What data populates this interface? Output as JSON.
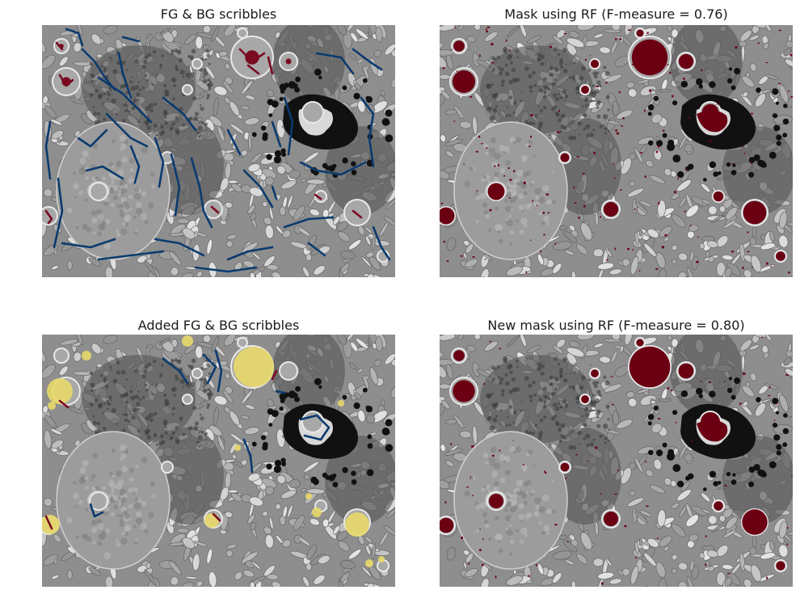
{
  "figure": {
    "panels": [
      {
        "id": "p1",
        "title": "FG & BG scribbles",
        "overlay": "scribbles"
      },
      {
        "id": "p2",
        "title": "Mask using RF (F-measure = 0.76)",
        "overlay": "mask"
      },
      {
        "id": "p3",
        "title": "Added FG & BG scribbles",
        "overlay": "added"
      },
      {
        "id": "p4",
        "title": "New mask using RF (F-measure = 0.80)",
        "overlay": "mask2"
      }
    ]
  },
  "colors": {
    "foreground_mask": "#6b0013",
    "foreground_scribble": "#7a0a20",
    "background_scribble": "#0b3a6e",
    "added_highlight": "#e8d96a",
    "tissue_light": "#c8c8c8",
    "tissue_mid": "#8e8e8e",
    "tissue_dark": "#5a5a5a",
    "vesicle_black": "#111111"
  }
}
